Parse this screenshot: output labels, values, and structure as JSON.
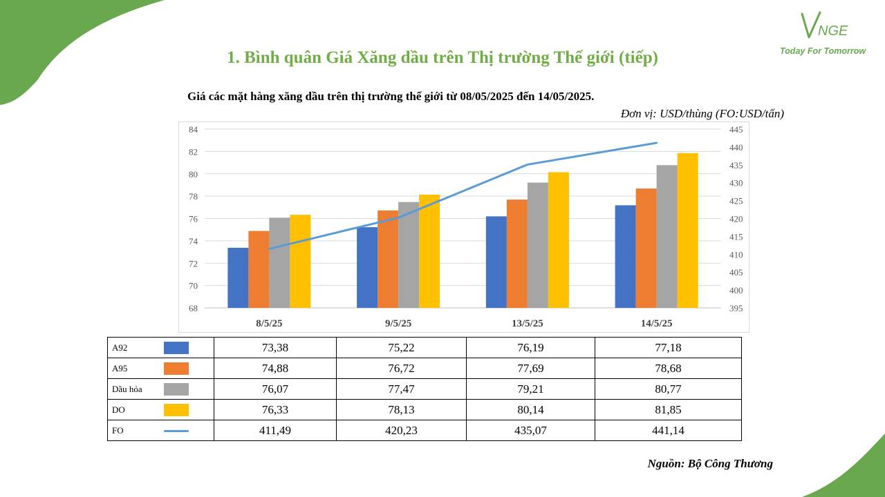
{
  "header": {
    "title": "1. Bình quân Giá Xăng dầu trên Thị trường Thế giới (tiếp)",
    "logo_text": "VNGE",
    "logo_tagline": "Today For Tomorrow"
  },
  "chart_data": {
    "type": "bar",
    "title": "Giá các mặt hàng xăng dầu trên thị trường thế giới từ 08/05/2025 đến 14/05/2025.",
    "unit": "Đơn vị:  USD/thùng (FO:USD/tấn)",
    "categories": [
      "8/5/25",
      "9/5/25",
      "13/5/25",
      "14/5/25"
    ],
    "series": [
      {
        "name": "A92",
        "type": "bar",
        "axis": "left",
        "color": "#4472c4",
        "values": [
          73.38,
          75.22,
          76.19,
          77.18
        ],
        "labels": [
          "73,38",
          "75,22",
          "76,19",
          "77,18"
        ]
      },
      {
        "name": "A95",
        "type": "bar",
        "axis": "left",
        "color": "#ed7d31",
        "values": [
          74.88,
          76.72,
          77.69,
          78.68
        ],
        "labels": [
          "74,88",
          "76,72",
          "77,69",
          "78,68"
        ]
      },
      {
        "name": "Dầu hỏa",
        "type": "bar",
        "axis": "left",
        "color": "#a5a5a5",
        "values": [
          76.07,
          77.47,
          79.21,
          80.77
        ],
        "labels": [
          "76,07",
          "77,47",
          "79,21",
          "80,77"
        ]
      },
      {
        "name": "DO",
        "type": "bar",
        "axis": "left",
        "color": "#ffc000",
        "values": [
          76.33,
          78.13,
          80.14,
          81.85
        ],
        "labels": [
          "76,33",
          "78,13",
          "80,14",
          "81,85"
        ]
      },
      {
        "name": "FO",
        "type": "line",
        "axis": "right",
        "color": "#5b9bd5",
        "values": [
          411.49,
          420.23,
          435.07,
          441.14
        ],
        "labels": [
          "411,49",
          "420,23",
          "435,07",
          "441,14"
        ]
      }
    ],
    "y_left": {
      "min": 68,
      "max": 84,
      "step": 2
    },
    "y_right": {
      "min": 395,
      "max": 445,
      "step": 5
    },
    "grid": true
  },
  "source": "Nguồn: Bộ Công Thương"
}
